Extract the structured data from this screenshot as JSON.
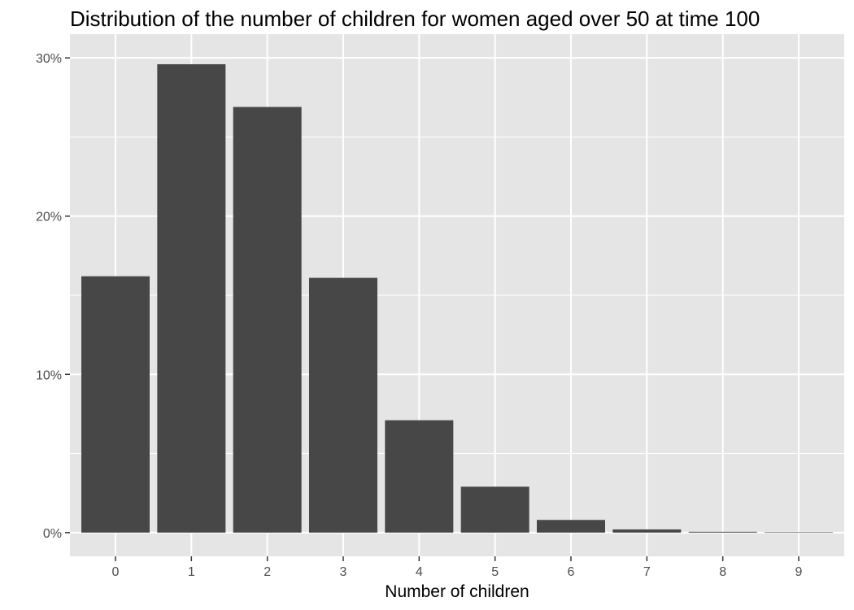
{
  "chart_data": {
    "type": "bar",
    "title": "Distribution of the number of children for women aged over 50 at time 100",
    "xlabel": "Number of children",
    "ylabel": "",
    "categories": [
      "0",
      "1",
      "2",
      "3",
      "4",
      "5",
      "6",
      "7",
      "8",
      "9"
    ],
    "values": [
      16.2,
      29.6,
      26.9,
      16.1,
      7.1,
      2.9,
      0.8,
      0.2,
      0.05,
      0.02
    ],
    "y_unit": "%",
    "ylim": [
      -1.5,
      31.5
    ],
    "yticks": [
      0,
      10,
      20,
      30
    ],
    "ytick_labels": [
      "0%",
      "10%",
      "20%",
      "30%"
    ],
    "grid": true,
    "legend": "none",
    "colors": {
      "panel_background": "#e5e5e5",
      "grid": "#ffffff",
      "bar_fill": "#474747",
      "tick_text": "#4d4d4d",
      "tick_mark": "#333333"
    }
  }
}
